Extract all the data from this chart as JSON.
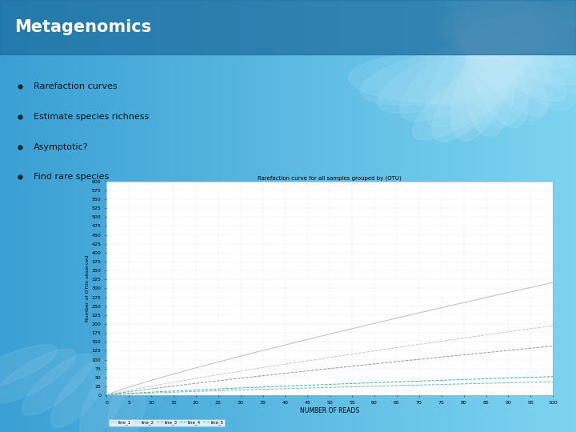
{
  "title": "Metagenomics",
  "bullets": [
    "Rarefaction curves",
    "Estimate species richness",
    "Asymptotic?",
    "Find rare species"
  ],
  "plot_title": "Rarefaction curve for all samples grouped by (OTU)",
  "xlabel": "NUMBER OF READS",
  "ylabel": "Number of OTUs observed",
  "bg_color_left": "#3a9fd4",
  "bg_color_right": "#7dd4f0",
  "title_bar_color": "#1e6ea0",
  "title_color": "#ffffff",
  "bullet_color": "#111111",
  "plot_bg": "#ffffff",
  "plot_border": "#aaaaaa",
  "lines": [
    {
      "label": "line_1",
      "color": "#b8bebe",
      "style": "-",
      "rate": 5.5,
      "exp": 0.88
    },
    {
      "label": "line_2",
      "color": "#c0c8c0",
      "style": "--",
      "rate": 3.4,
      "exp": 0.88
    },
    {
      "label": "line_3",
      "color": "#909898",
      "style": "--",
      "rate": 2.4,
      "exp": 0.88
    },
    {
      "label": "line_4",
      "color": "#40b0a8",
      "style": "--",
      "rate": 1.45,
      "exp": 0.78
    },
    {
      "label": "line_5",
      "color": "#60c0b8",
      "style": "--",
      "rate": 1.05,
      "exp": 0.78
    }
  ]
}
